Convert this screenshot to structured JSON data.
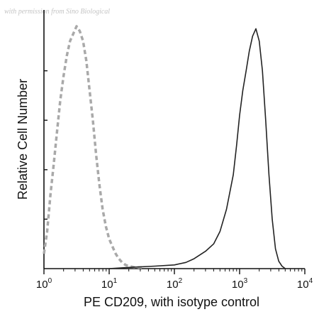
{
  "watermark": "with permission from Sino Biological",
  "chart_data": {
    "type": "line",
    "xlabel": "PE CD209, with isotype control",
    "ylabel": "Relative Cell Number",
    "x_scale": "log10",
    "xlim": [
      1,
      10000
    ],
    "ylim": [
      0,
      1
    ],
    "x_ticks": [
      {
        "base": "10",
        "exp": "0",
        "value": 1
      },
      {
        "base": "10",
        "exp": "1",
        "value": 10
      },
      {
        "base": "10",
        "exp": "2",
        "value": 100
      },
      {
        "base": "10",
        "exp": "3",
        "value": 1000
      },
      {
        "base": "10",
        "exp": "4",
        "value": 10000
      }
    ],
    "y_ticks": [
      0.2,
      0.4,
      0.6,
      0.8
    ],
    "grid": false,
    "legend": "none",
    "series": [
      {
        "color": "#a9a9a9",
        "style": "dashed",
        "x": [
          1.0,
          1.12,
          1.26,
          1.41,
          1.58,
          1.78,
          2.0,
          2.24,
          2.51,
          2.82,
          3.16,
          3.55,
          3.98,
          4.47,
          5.01,
          5.62,
          6.31,
          7.08,
          7.94,
          8.91,
          10.0,
          11.2,
          12.6,
          14.1,
          15.8,
          17.8,
          20.0,
          25.1,
          31.6
        ],
        "y": [
          0.06,
          0.15,
          0.3,
          0.42,
          0.55,
          0.68,
          0.78,
          0.86,
          0.92,
          0.95,
          0.98,
          0.96,
          0.92,
          0.84,
          0.72,
          0.6,
          0.46,
          0.34,
          0.24,
          0.17,
          0.12,
          0.09,
          0.06,
          0.04,
          0.025,
          0.015,
          0.01,
          0.005,
          0.005
        ]
      },
      {
        "color": "#222222",
        "style": "solid",
        "x": [
          10,
          20,
          50,
          100,
          150,
          200,
          300,
          400,
          500,
          630,
          800,
          900,
          1000,
          1120,
          1260,
          1410,
          1580,
          1780,
          2000,
          2240,
          2510,
          2820,
          3160,
          3550,
          3980,
          4470,
          5010
        ],
        "y": [
          0.0,
          0.005,
          0.01,
          0.015,
          0.025,
          0.04,
          0.07,
          0.1,
          0.15,
          0.24,
          0.38,
          0.5,
          0.62,
          0.72,
          0.8,
          0.88,
          0.94,
          0.97,
          0.92,
          0.8,
          0.6,
          0.38,
          0.2,
          0.08,
          0.03,
          0.01,
          0.0
        ]
      }
    ]
  }
}
